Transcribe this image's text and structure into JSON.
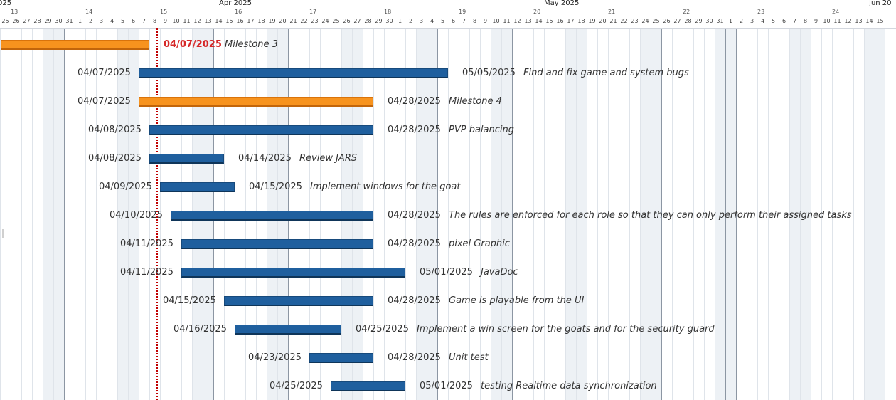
{
  "timeline": {
    "month_labels": [
      "025",
      "Apr 2025",
      "May 2025",
      "Jun 20"
    ],
    "week_labels": [
      "13",
      "14",
      "15",
      "16",
      "17",
      "18",
      "19",
      "20",
      "21",
      "22",
      "23",
      "24"
    ],
    "day_labels": [
      "25",
      "26",
      "27",
      "28",
      "29",
      "30",
      "31",
      "1",
      "2",
      "3",
      "4",
      "5",
      "6",
      "7",
      "8",
      "9",
      "10",
      "11",
      "12",
      "13",
      "14",
      "15",
      "16",
      "17",
      "18",
      "19",
      "20",
      "21",
      "22",
      "23",
      "24",
      "25",
      "26",
      "27",
      "28",
      "29",
      "30",
      "1",
      "2",
      "3",
      "4",
      "5",
      "6",
      "7",
      "8",
      "9",
      "10",
      "11",
      "12",
      "13",
      "14",
      "15",
      "16",
      "17",
      "18",
      "19",
      "20",
      "21",
      "22",
      "23",
      "24",
      "25",
      "26",
      "27",
      "28",
      "29",
      "30",
      "31",
      "1",
      "2",
      "3",
      "4",
      "5",
      "6",
      "7",
      "8",
      "9",
      "10",
      "11",
      "12",
      "13",
      "14",
      "15"
    ],
    "today_label": "04/07/2025"
  },
  "colors": {
    "task": "#1f5f9e",
    "milestone": "#f7931e",
    "today": "#c00000"
  },
  "tasks": [
    {
      "name": "Milestone 3",
      "type": "milestone",
      "start": "",
      "end": "04/07/2025",
      "end_highlight": true
    },
    {
      "name": "Find and fix game and system bugs",
      "type": "task",
      "start": "04/07/2025",
      "end": "05/05/2025"
    },
    {
      "name": "Milestone 4",
      "type": "milestone",
      "start": "04/07/2025",
      "end": "04/28/2025"
    },
    {
      "name": "PVP balancing",
      "type": "task",
      "start": "04/08/2025",
      "end": "04/28/2025"
    },
    {
      "name": "Review JARS",
      "type": "task",
      "start": "04/08/2025",
      "end": "04/14/2025"
    },
    {
      "name": "Implement windows for the goat",
      "type": "task",
      "start": "04/09/2025",
      "end": "04/15/2025"
    },
    {
      "name": "The rules are enforced for each role so that they can only perform their assigned tasks",
      "type": "task",
      "start": "04/10/2025",
      "end": "04/28/2025"
    },
    {
      "name": "pixel Graphic",
      "type": "task",
      "start": "04/11/2025",
      "end": "04/28/2025"
    },
    {
      "name": "JavaDoc",
      "type": "task",
      "start": "04/11/2025",
      "end": "05/01/2025"
    },
    {
      "name": "Game is playable from the UI",
      "type": "task",
      "start": "04/15/2025",
      "end": "04/28/2025"
    },
    {
      "name": "Implement a win screen for the goats and for the security guard",
      "type": "task",
      "start": "04/16/2025",
      "end": "04/25/2025"
    },
    {
      "name": "Unit test",
      "type": "task",
      "start": "04/23/2025",
      "end": "04/28/2025"
    },
    {
      "name": "testing Realtime data synchronization",
      "type": "task",
      "start": "04/25/2025",
      "end": "05/01/2025"
    }
  ]
}
